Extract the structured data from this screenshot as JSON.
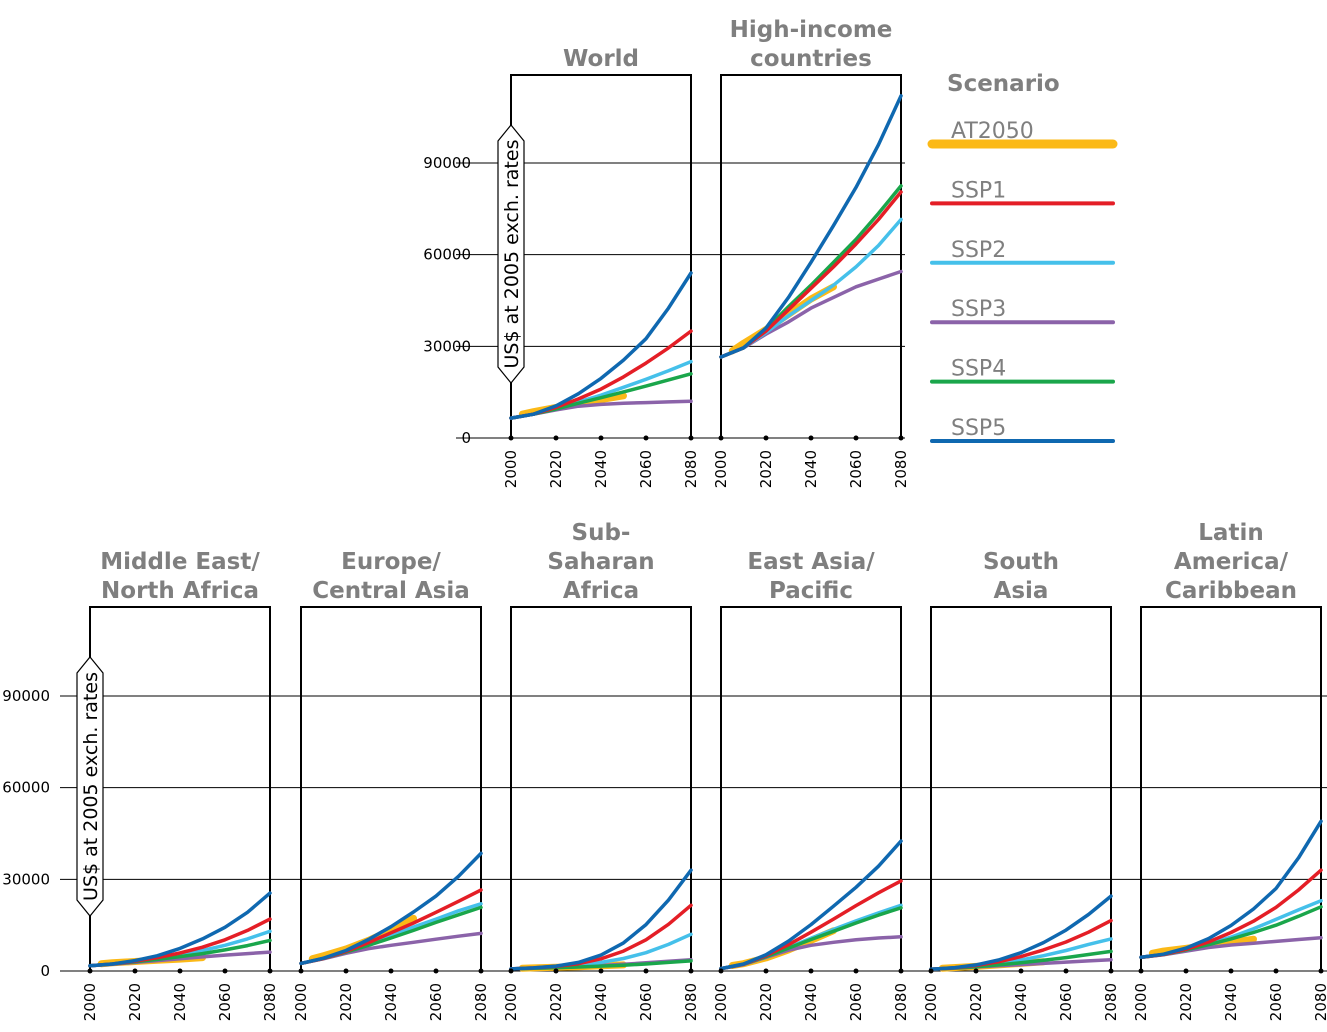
{
  "colors": {
    "AT2050": "#fbb917",
    "SSP1": "#e41e26",
    "SSP2": "#45c0ea",
    "SSP3": "#8b63a9",
    "SSP4": "#1aa64b",
    "SSP5": "#0f68b0"
  },
  "legend": {
    "title": "Scenario",
    "items": [
      "AT2050",
      "SSP1",
      "SSP2",
      "SSP3",
      "SSP4",
      "SSP5"
    ]
  },
  "chart_data": {
    "type": "line",
    "ylabel": "US$ at 2005 exch. rates",
    "ylim": [
      0,
      115000
    ],
    "yticks": [
      0,
      30000,
      60000,
      90000
    ],
    "xlim": [
      2000,
      2080
    ],
    "xticks": [
      2000,
      2020,
      2040,
      2060,
      2080
    ],
    "x": [
      2000,
      2010,
      2020,
      2030,
      2040,
      2050,
      2060,
      2070,
      2080
    ],
    "at2050_x": [
      2005,
      2010,
      2020,
      2030,
      2040,
      2050
    ],
    "panels": [
      {
        "title": [
          "World"
        ],
        "series": [
          {
            "name": "SSP3",
            "values": [
              6500,
              7800,
              9200,
              10400,
              11000,
              11400,
              11600,
              11800,
              12000
            ]
          },
          {
            "name": "SSP4",
            "values": [
              6500,
              7800,
              9500,
              11400,
              13200,
              15100,
              17000,
              19000,
              21000
            ]
          },
          {
            "name": "SSP2",
            "values": [
              6500,
              7800,
              9700,
              11800,
              14000,
              16600,
              19200,
              22000,
              25000
            ]
          },
          {
            "name": "SSP1",
            "values": [
              6500,
              7800,
              10000,
              12800,
              16000,
              20000,
              24500,
              29500,
              35000
            ]
          },
          {
            "name": "SSP5",
            "values": [
              6500,
              7800,
              10500,
              14500,
              19500,
              25500,
              32500,
              42500,
              54000
            ]
          },
          {
            "name": "AT2050",
            "values": [
              7800,
              8600,
              10000,
              11400,
              12600,
              13800
            ]
          }
        ]
      },
      {
        "title": [
          "High-income",
          "countries"
        ],
        "series": [
          {
            "name": "SSP3",
            "values": [
              26500,
              29500,
              34000,
              38000,
              42500,
              46000,
              49500,
              52000,
              54500
            ]
          },
          {
            "name": "SSP2",
            "values": [
              26500,
              29500,
              34500,
              40000,
              45000,
              50000,
              56000,
              63000,
              71500
            ]
          },
          {
            "name": "SSP1",
            "values": [
              26500,
              29500,
              35000,
              42000,
              49000,
              56000,
              63500,
              71500,
              80500
            ]
          },
          {
            "name": "SSP4",
            "values": [
              26500,
              29500,
              35500,
              43000,
              50000,
              57500,
              65000,
              73500,
              82500
            ]
          },
          {
            "name": "SSP5",
            "values": [
              26500,
              29500,
              36000,
              46000,
              57500,
              69500,
              82000,
              96000,
              112000
            ]
          },
          {
            "name": "AT2050",
            "values": [
              28500,
              31000,
              35500,
              40500,
              45500,
              49500
            ]
          }
        ]
      },
      {
        "title": [
          "Middle East/",
          "North Africa"
        ],
        "series": [
          {
            "name": "SSP3",
            "values": [
              1700,
              2200,
              2800,
              3400,
              4000,
              4600,
              5200,
              5700,
              6200
            ]
          },
          {
            "name": "SSP4",
            "values": [
              1700,
              2300,
              3000,
              3800,
              4700,
              5700,
              6900,
              8300,
              10000
            ]
          },
          {
            "name": "SSP2",
            "values": [
              1700,
              2300,
              3100,
              4100,
              5300,
              6700,
              8400,
              10500,
              13000
            ]
          },
          {
            "name": "SSP1",
            "values": [
              1700,
              2300,
              3200,
              4400,
              5900,
              7800,
              10200,
              13300,
              17000
            ]
          },
          {
            "name": "SSP5",
            "values": [
              1700,
              2300,
              3400,
              5000,
              7400,
              10500,
              14300,
              19200,
              25500
            ]
          },
          {
            "name": "AT2050",
            "values": [
              2400,
              2700,
              3100,
              3500,
              3900,
              4400
            ]
          }
        ]
      },
      {
        "title": [
          "Europe/",
          "Central Asia"
        ],
        "series": [
          {
            "name": "SSP3",
            "values": [
              2500,
              4000,
              5800,
              7300,
              8400,
              9400,
              10400,
              11400,
              12300
            ]
          },
          {
            "name": "SSP4",
            "values": [
              2500,
              4100,
              6200,
              8400,
              10800,
              13300,
              15900,
              18400,
              20800
            ]
          },
          {
            "name": "SSP2",
            "values": [
              2500,
              4100,
              6300,
              8800,
              11600,
              14400,
              17000,
              19700,
              22000
            ]
          },
          {
            "name": "SSP1",
            "values": [
              2500,
              4100,
              6400,
              9300,
              12500,
              15700,
              19200,
              22800,
              26500
            ]
          },
          {
            "name": "SSP5",
            "values": [
              2500,
              4200,
              6700,
              10300,
              14500,
              19300,
              24500,
              31000,
              38500
            ]
          },
          {
            "name": "AT2050",
            "values": [
              4000,
              5000,
              7200,
              10000,
              13400,
              17200
            ]
          }
        ]
      },
      {
        "title": [
          "Sub-",
          "Saharan",
          "Africa"
        ],
        "series": [
          {
            "name": "SSP3",
            "values": [
              700,
              900,
              1100,
              1400,
              1800,
              2200,
              2700,
              3200,
              3700
            ]
          },
          {
            "name": "SSP4",
            "values": [
              700,
              900,
              1100,
              1300,
              1600,
              1900,
              2300,
              2800,
              3300
            ]
          },
          {
            "name": "SSP2",
            "values": [
              700,
              950,
              1300,
              1900,
              2800,
              4100,
              6000,
              8700,
              12000
            ]
          },
          {
            "name": "SSP1",
            "values": [
              700,
              1000,
              1500,
              2400,
              4000,
              6500,
              10200,
              15300,
              21500
            ]
          },
          {
            "name": "SSP5",
            "values": [
              700,
              1000,
              1600,
              2800,
              5200,
              9200,
              15200,
              23200,
              33000
            ]
          },
          {
            "name": "AT2050",
            "values": [
              900,
              1000,
              1200,
              1400,
              1700,
              2000
            ]
          }
        ]
      },
      {
        "title": [
          "East Asia/",
          "Pacific"
        ],
        "series": [
          {
            "name": "SSP3",
            "values": [
              800,
              2100,
              4500,
              6800,
              8400,
              9400,
              10200,
              10800,
              11200
            ]
          },
          {
            "name": "SSP4",
            "values": [
              800,
              2200,
              4700,
              7500,
              10300,
              13000,
              15700,
              18300,
              20700
            ]
          },
          {
            "name": "SSP2",
            "values": [
              800,
              2200,
              4700,
              7700,
              10700,
              13600,
              16400,
              19000,
              21500
            ]
          },
          {
            "name": "SSP1",
            "values": [
              800,
              2200,
              5000,
              8600,
              12700,
              17000,
              21400,
              25600,
              29500
            ]
          },
          {
            "name": "SSP5",
            "values": [
              800,
              2300,
              5300,
              9800,
              15200,
              21200,
              27400,
              34300,
              42500
            ]
          },
          {
            "name": "AT2050",
            "values": [
              1800,
              2400,
              4300,
              6900,
              10000,
              13200
            ]
          }
        ]
      },
      {
        "title": [
          "South",
          "Asia"
        ],
        "series": [
          {
            "name": "SSP3",
            "values": [
              600,
              900,
              1300,
              1700,
              2100,
              2500,
              2900,
              3300,
              3700
            ]
          },
          {
            "name": "SSP4",
            "values": [
              600,
              950,
              1400,
              2000,
              2700,
              3500,
              4400,
              5400,
              6400
            ]
          },
          {
            "name": "SSP2",
            "values": [
              600,
              1000,
              1600,
              2500,
              3600,
              5000,
              6700,
              8700,
              10500
            ]
          },
          {
            "name": "SSP1",
            "values": [
              600,
              1000,
              1800,
              3000,
              4700,
              6900,
              9500,
              12700,
              16500
            ]
          },
          {
            "name": "SSP5",
            "values": [
              600,
              1050,
              2000,
              3600,
              6000,
              9300,
              13400,
              18500,
              24500
            ]
          },
          {
            "name": "AT2050",
            "values": [
              900,
              1100,
              1500,
              2000,
              2500,
              3000
            ]
          }
        ]
      },
      {
        "title": [
          "Latin",
          "America/",
          "Caribbean"
        ],
        "series": [
          {
            "name": "SSP3",
            "values": [
              4500,
              5300,
              6500,
              7700,
              8500,
              9100,
              9700,
              10300,
              10900
            ]
          },
          {
            "name": "SSP4",
            "values": [
              4500,
              5400,
              6900,
              8600,
              10500,
              12600,
              15000,
              17900,
              21000
            ]
          },
          {
            "name": "SSP2",
            "values": [
              4500,
              5400,
              6900,
              8800,
              11100,
              13800,
              16900,
              20000,
              23000
            ]
          },
          {
            "name": "SSP1",
            "values": [
              4500,
              5400,
              7100,
              9500,
              12600,
              16300,
              20800,
              26500,
              33000
            ]
          },
          {
            "name": "SSP5",
            "values": [
              4500,
              5500,
              7500,
              10600,
              14900,
              20300,
              27000,
              37000,
              49000
            ]
          },
          {
            "name": "AT2050",
            "values": [
              5800,
              6500,
              7400,
              8400,
              9400,
              10400
            ]
          }
        ]
      }
    ]
  }
}
